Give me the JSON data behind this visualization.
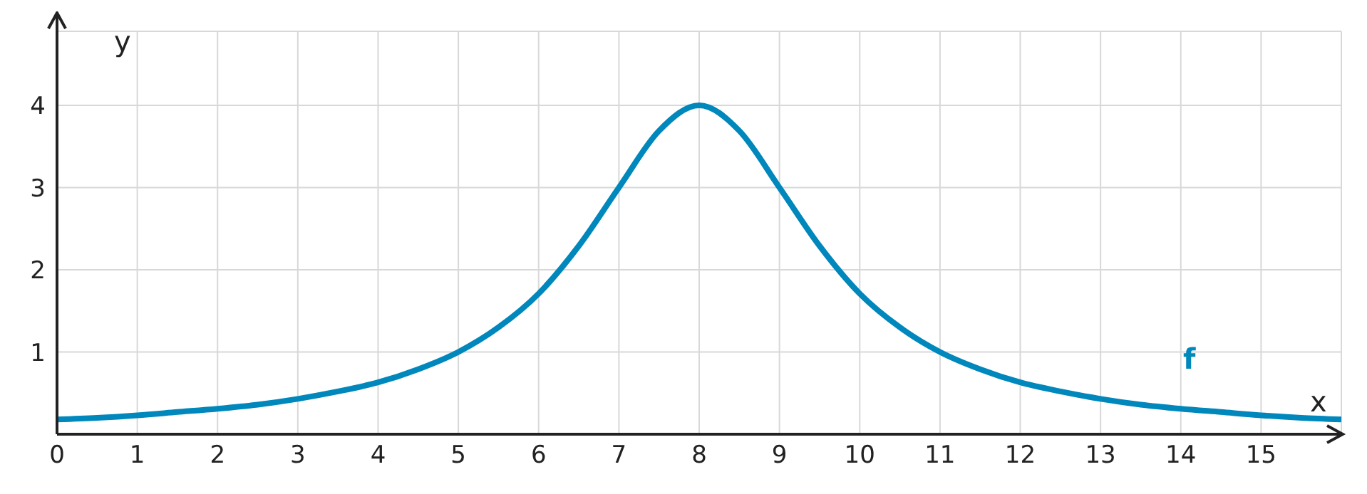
{
  "chart_data": {
    "type": "line",
    "xlabel": "x",
    "ylabel": "y",
    "x": [
      0,
      0.5,
      1,
      1.5,
      2,
      2.5,
      3,
      3.5,
      4,
      4.5,
      5,
      5.5,
      6,
      6.5,
      7,
      7.5,
      8,
      8.5,
      9,
      9.5,
      10,
      10.5,
      11,
      11.5,
      12,
      12.5,
      13,
      13.5,
      14,
      14.5,
      15,
      15.5,
      16
    ],
    "series": [
      {
        "name": "f",
        "color": "#0087bb",
        "values": [
          0.18,
          0.2,
          0.23,
          0.27,
          0.31,
          0.36,
          0.43,
          0.52,
          0.63,
          0.79,
          1,
          1.3,
          1.71,
          2.29,
          3,
          3.69,
          4,
          3.69,
          3,
          2.29,
          1.71,
          1.3,
          1,
          0.79,
          0.63,
          0.52,
          0.43,
          0.36,
          0.31,
          0.27,
          0.23,
          0.2,
          0.18
        ]
      }
    ],
    "xlim": [
      0,
      16
    ],
    "ylim": [
      0,
      4.9
    ],
    "xticks": [
      0,
      1,
      2,
      3,
      4,
      5,
      6,
      7,
      8,
      9,
      10,
      11,
      12,
      13,
      14,
      15
    ],
    "yticks": [
      1,
      2,
      3,
      4
    ],
    "grid": true,
    "marker": "none",
    "line_style": "solid"
  }
}
